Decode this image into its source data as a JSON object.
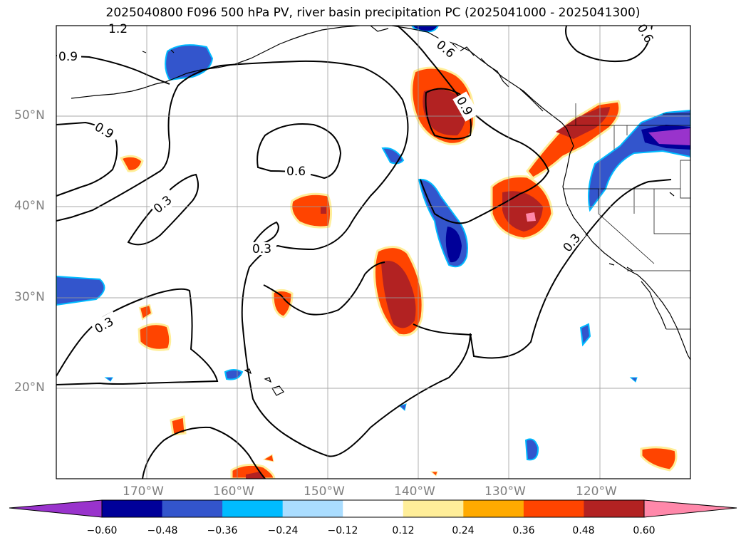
{
  "title": "2025040800 F096 500 hPa PV, river basin precipitation PC (2025041000 - 2025041300)",
  "map": {
    "lon_range": [
      -180,
      -110
    ],
    "lat_range": [
      10,
      60
    ],
    "lon_ticks": [
      "170°W",
      "160°W",
      "150°W",
      "140°W",
      "130°W",
      "120°W"
    ],
    "lat_ticks": [
      "50°N",
      "40°N",
      "30°N",
      "20°N"
    ],
    "contour_labels": [
      "1.2",
      "0.9",
      "0.9",
      "0.6",
      "0.9",
      "0.6",
      "0.6",
      "0.3",
      "0.3",
      "0.3",
      "0.3"
    ],
    "gridlines": true
  },
  "colorbar": {
    "ticks": [
      "−0.60",
      "−0.48",
      "−0.36",
      "−0.24",
      "−0.12",
      "0.12",
      "0.24",
      "0.36",
      "0.48",
      "0.60"
    ],
    "colors": [
      "#9933cc",
      "#000099",
      "#3355cc",
      "#00bbff",
      "#aaddff",
      "#ffffff",
      "#ffee99",
      "#ffaa00",
      "#ff4400",
      "#b22222",
      "#ff88aa"
    ]
  }
}
